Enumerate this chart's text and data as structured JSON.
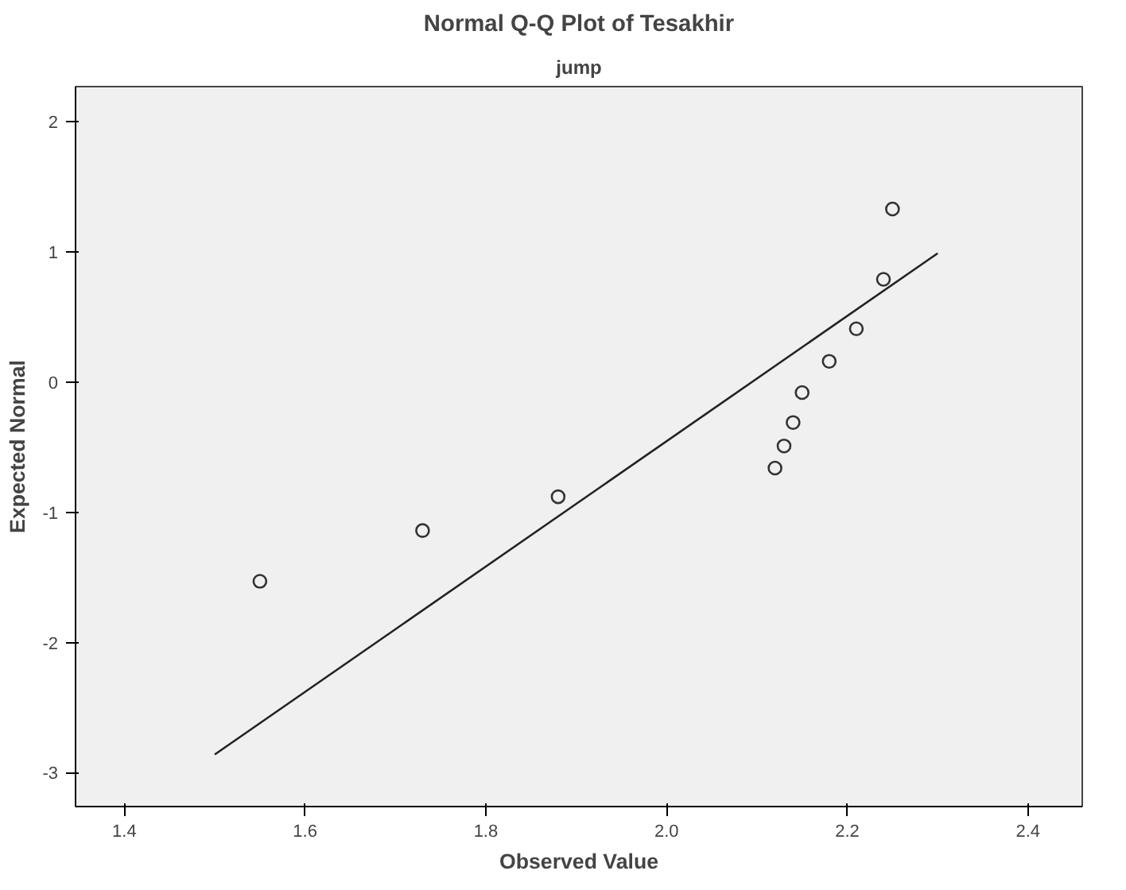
{
  "chart_data": {
    "type": "scatter",
    "title": "Normal Q-Q Plot of Tesakhir",
    "subtitle": "jump",
    "xlabel": "Observed Value",
    "ylabel": "Expected Normal",
    "grid": false,
    "xlim": [
      1.346,
      2.46
    ],
    "xticks": [
      {
        "value": 1.4,
        "label": "1.4"
      },
      {
        "value": 1.6,
        "label": "1.6"
      },
      {
        "value": 1.8,
        "label": "1.8"
      },
      {
        "value": 2.0,
        "label": "2.0"
      },
      {
        "value": 2.2,
        "label": "2.2"
      },
      {
        "value": 2.4,
        "label": "2.4"
      }
    ],
    "ylim": [
      -3.26,
      2.27
    ],
    "yticks": [
      -3,
      -2,
      -1,
      0,
      1,
      2
    ],
    "series": [
      {
        "marker": "circle",
        "color": "#333333",
        "x": [
          1.55,
          1.73,
          1.88,
          2.12,
          2.13,
          2.14,
          2.15,
          2.18,
          2.21,
          2.24,
          2.25
        ],
        "values": [
          -1.53,
          -1.14,
          -0.88,
          -0.66,
          -0.49,
          -0.31,
          -0.08,
          0.16,
          0.41,
          0.79,
          1.33
        ]
      },
      {
        "type": "line",
        "marker": "none",
        "color": "#222222",
        "x": [
          1.5,
          2.3
        ],
        "values": [
          -2.86,
          0.99
        ]
      }
    ]
  }
}
